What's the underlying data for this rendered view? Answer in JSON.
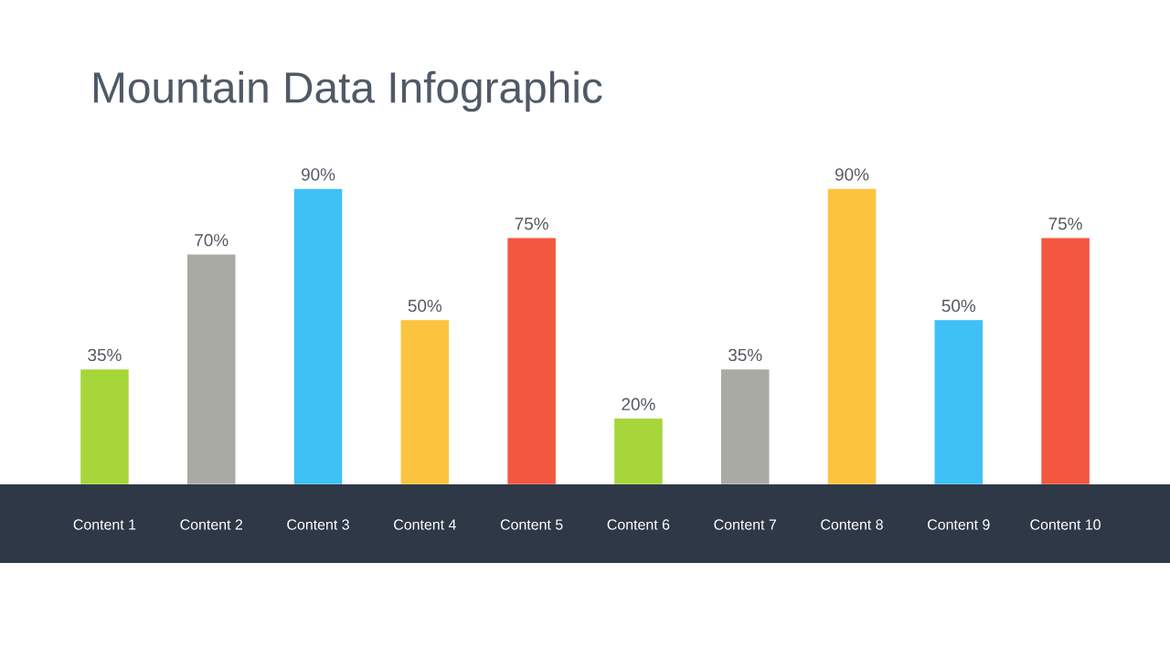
{
  "chart_data": {
    "type": "bar",
    "title": "Mountain Data Infographic",
    "categories": [
      "Content 1",
      "Content 2",
      "Content 3",
      "Content 4",
      "Content 5",
      "Content 6",
      "Content 7",
      "Content 8",
      "Content 9",
      "Content 10"
    ],
    "values": [
      35,
      70,
      90,
      50,
      75,
      20,
      35,
      90,
      50,
      75
    ],
    "value_labels": [
      "35%",
      "70%",
      "90%",
      "50%",
      "75%",
      "20%",
      "35%",
      "90%",
      "50%",
      "75%"
    ],
    "colors": [
      "#a6d63a",
      "#a9aaa4",
      "#3fc1f5",
      "#fcc43e",
      "#f4573f",
      "#a6d63a",
      "#a9aaa4",
      "#fcc43e",
      "#3fc1f5",
      "#f4573f"
    ]
  }
}
